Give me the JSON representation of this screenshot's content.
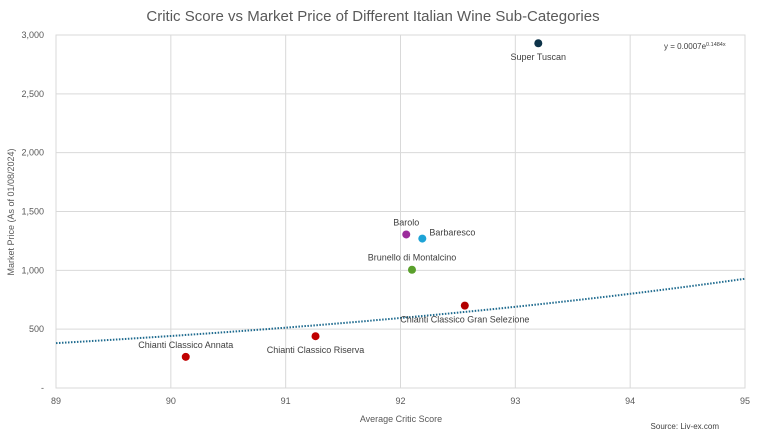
{
  "chart_data": {
    "type": "scatter",
    "title": "Critic Score vs Market Price of Different Italian Wine Sub-Categories",
    "xlabel": "Average Critic Score",
    "ylabel": "Market Price (As of 01/08/2024)",
    "xlim": [
      89,
      95
    ],
    "ylim": [
      0,
      3000
    ],
    "x_ticks": [
      "89",
      "90",
      "91",
      "92",
      "93",
      "94",
      "95"
    ],
    "y_ticks": [
      "-",
      "500",
      "1,000",
      "1,500",
      "2,000",
      "2,500",
      "3,000"
    ],
    "grid": true,
    "points": [
      {
        "label": "Super Tuscan",
        "x": 93.2,
        "y": 2930,
        "color": "#0d3349",
        "label_pos": "below"
      },
      {
        "label": "Barolo",
        "x": 92.05,
        "y": 1305,
        "color": "#9b2c9b",
        "label_pos": "above"
      },
      {
        "label": "Barbaresco",
        "x": 92.19,
        "y": 1270,
        "color": "#1ea3d6",
        "label_pos": "right"
      },
      {
        "label": "Brunello di Montalcino",
        "x": 92.1,
        "y": 1005,
        "color": "#5aa02c",
        "label_pos": "above"
      },
      {
        "label": "Chianti Classico Gran Selezione",
        "x": 92.56,
        "y": 700,
        "color": "#b30000",
        "label_pos": "below"
      },
      {
        "label": "Chianti Classico Riserva",
        "x": 91.26,
        "y": 440,
        "color": "#c00000",
        "label_pos": "below"
      },
      {
        "label": "Chianti Classico Annata",
        "x": 90.13,
        "y": 265,
        "color": "#c00000",
        "label_pos": "above"
      }
    ],
    "trendline": {
      "type": "exponential",
      "equation_base": "y = 0.0007e",
      "equation_exp": "0.1484x",
      "a": 0.0007,
      "b": 0.1484,
      "color": "#1f6b8f"
    },
    "source": "Source: Liv-ex.com"
  }
}
